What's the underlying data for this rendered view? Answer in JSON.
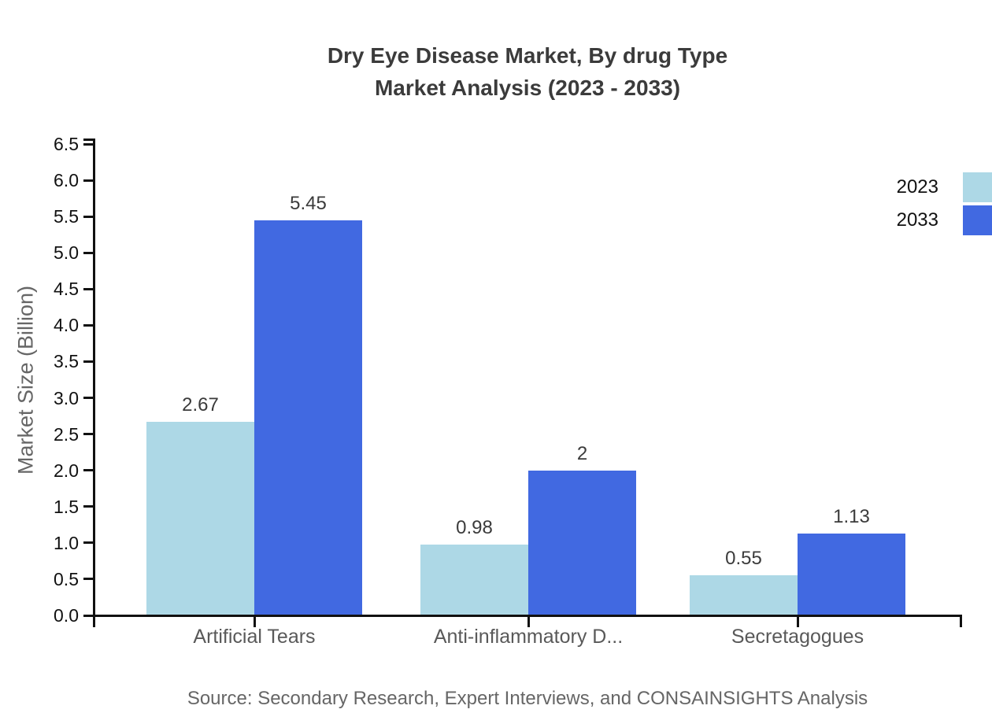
{
  "title": {
    "line1": "Dry Eye Disease Market, By drug Type",
    "line2": "Market Analysis (2023 - 2033)"
  },
  "source": "Source: Secondary Research, Expert Interviews, and CONSAINSIGHTS Analysis",
  "chart_data": {
    "type": "bar",
    "title": "Dry Eye Disease Market, By drug Type Market Analysis (2023 - 2033)",
    "categories": [
      "Artificial Tears",
      "Anti-inflammatory D...",
      "Secretagogues"
    ],
    "series": [
      {
        "name": "2023",
        "color": "#ADD8E6",
        "values": [
          2.67,
          0.98,
          0.55
        ]
      },
      {
        "name": "2033",
        "color": "#4169E1",
        "values": [
          5.45,
          2,
          1.13
        ]
      }
    ],
    "xlabel": "",
    "ylabel": "Market Size (Billion)",
    "ylim": [
      0,
      6.5
    ],
    "ytick_step": 0.5,
    "grid": false,
    "legend_position": "top-right",
    "axis_color": "#111111",
    "value_label_color": "#3b3b3b",
    "category_label_color": "#595959",
    "tick_label_color": "#111111"
  }
}
